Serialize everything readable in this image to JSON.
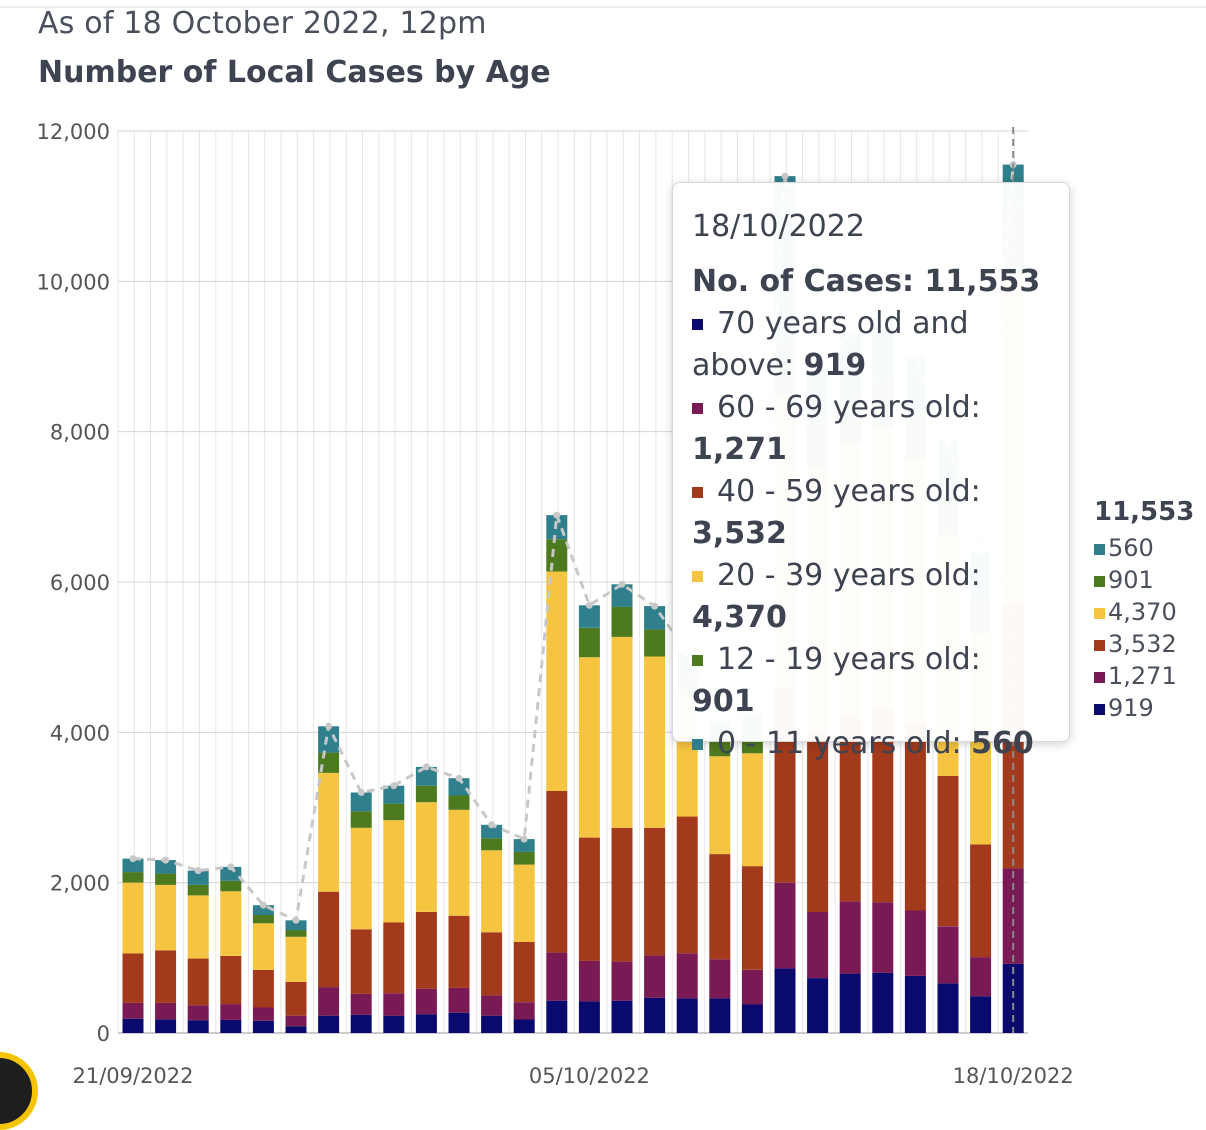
{
  "header": {
    "subtitle": "As of 18 October 2022, 12pm",
    "title": "Number of Local Cases by Age"
  },
  "colors": {
    "age_70_plus": "#0a0a6e",
    "age_60_69": "#7a1a55",
    "age_40_59": "#a33a1c",
    "age_20_39": "#f5c542",
    "age_12_19": "#4d7a1e",
    "age_0_11": "#2f7f8c",
    "total_line": "#c8c8c8"
  },
  "chart_data": {
    "type": "bar",
    "stacked": true,
    "title": "Number of Local Cases by Age",
    "xlabel": "",
    "ylabel": "",
    "ylim": [
      0,
      12000
    ],
    "yticks": [
      "0",
      "2,000",
      "4,000",
      "6,000",
      "8,000",
      "10,000",
      "12,000"
    ],
    "xtick_labels": [
      {
        "index": 0,
        "label": "21/09/2022"
      },
      {
        "index": 14,
        "label": "05/10/2022"
      },
      {
        "index": 27,
        "label": "18/10/2022"
      }
    ],
    "grid": true,
    "categories": [
      "21/09/2022",
      "22/09/2022",
      "23/09/2022",
      "24/09/2022",
      "25/09/2022",
      "26/09/2022",
      "27/09/2022",
      "28/09/2022",
      "29/09/2022",
      "30/09/2022",
      "01/10/2022",
      "02/10/2022",
      "03/10/2022",
      "04/10/2022",
      "05/10/2022",
      "06/10/2022",
      "07/10/2022",
      "08/10/2022",
      "09/10/2022",
      "10/10/2022",
      "11/10/2022",
      "12/10/2022",
      "13/10/2022",
      "14/10/2022",
      "15/10/2022",
      "16/10/2022",
      "17/10/2022",
      "18/10/2022"
    ],
    "series": [
      {
        "name": "70 years old and above",
        "color_key": "age_70_plus",
        "values": [
          190,
          180,
          170,
          175,
          160,
          90,
          230,
          240,
          230,
          250,
          270,
          230,
          180,
          430,
          420,
          430,
          470,
          460,
          460,
          380,
          860,
          730,
          790,
          800,
          760,
          660,
          490,
          919
        ]
      },
      {
        "name": "60 - 69 years old",
        "color_key": "age_60_69",
        "values": [
          210,
          220,
          200,
          210,
          180,
          140,
          380,
          280,
          300,
          340,
          330,
          270,
          230,
          640,
          540,
          520,
          560,
          600,
          520,
          460,
          1140,
          880,
          960,
          940,
          870,
          760,
          520,
          1271
        ]
      },
      {
        "name": "40 - 59 years old",
        "color_key": "age_40_59",
        "values": [
          660,
          700,
          620,
          640,
          500,
          450,
          1270,
          860,
          940,
          1020,
          960,
          840,
          800,
          2150,
          1640,
          1780,
          1700,
          1820,
          1400,
          1380,
          2600,
          2400,
          2500,
          2600,
          2500,
          2000,
          1500,
          3532
        ]
      },
      {
        "name": "20 - 39 years old",
        "color_key": "age_20_39",
        "values": [
          940,
          870,
          840,
          860,
          620,
          600,
          1580,
          1350,
          1360,
          1460,
          1410,
          1090,
          1030,
          2920,
          2400,
          2540,
          2280,
          1620,
          1300,
          1500,
          3900,
          3500,
          3600,
          3700,
          3500,
          3200,
          2800,
          4370
        ]
      },
      {
        "name": "12 - 19 years old",
        "color_key": "age_12_19",
        "values": [
          140,
          150,
          140,
          140,
          110,
          90,
          270,
          220,
          220,
          220,
          190,
          160,
          170,
          430,
          390,
          400,
          360,
          300,
          260,
          280,
          720,
          600,
          650,
          660,
          620,
          560,
          480,
          901
        ]
      },
      {
        "name": "0 - 11 years old",
        "color_key": "age_0_11",
        "values": [
          180,
          180,
          190,
          185,
          130,
          130,
          350,
          250,
          240,
          250,
          230,
          180,
          170,
          320,
          300,
          300,
          310,
          260,
          220,
          240,
          2180,
          700,
          800,
          800,
          750,
          700,
          600,
          560
        ]
      }
    ],
    "totals": [
      2320,
      2300,
      2160,
      2210,
      1700,
      1500,
      4080,
      3200,
      3290,
      3540,
      3390,
      2770,
      2580,
      6890,
      5690,
      5970,
      5680,
      5060,
      4160,
      4240,
      11400,
      8810,
      9300,
      9500,
      9000,
      7880,
      6390,
      11553
    ],
    "annotation_index": 27
  },
  "tooltip": {
    "date": "18/10/2022",
    "total_label": "No. of Cases: ",
    "total_value": "11,553",
    "rows": [
      {
        "label": "70 years old and above: ",
        "value": "919",
        "color_key": "age_70_plus"
      },
      {
        "label": "60 - 69 years old: ",
        "value": "1,271",
        "color_key": "age_60_69"
      },
      {
        "label": "40 - 59 years old: ",
        "value": "3,532",
        "color_key": "age_40_59"
      },
      {
        "label": "20 - 39 years old: ",
        "value": "4,370",
        "color_key": "age_20_39"
      },
      {
        "label": "12 - 19 years old: ",
        "value": "901",
        "color_key": "age_12_19"
      },
      {
        "label": "0 - 11 years old: ",
        "value": "560",
        "color_key": "age_0_11"
      }
    ]
  },
  "legend": {
    "total": "11,553",
    "rows": [
      {
        "value": "560",
        "color_key": "age_0_11"
      },
      {
        "value": "901",
        "color_key": "age_12_19"
      },
      {
        "value": "4,370",
        "color_key": "age_20_39"
      },
      {
        "value": "3,532",
        "color_key": "age_40_59"
      },
      {
        "value": "1,271",
        "color_key": "age_60_69"
      },
      {
        "value": "919",
        "color_key": "age_70_plus"
      }
    ]
  }
}
